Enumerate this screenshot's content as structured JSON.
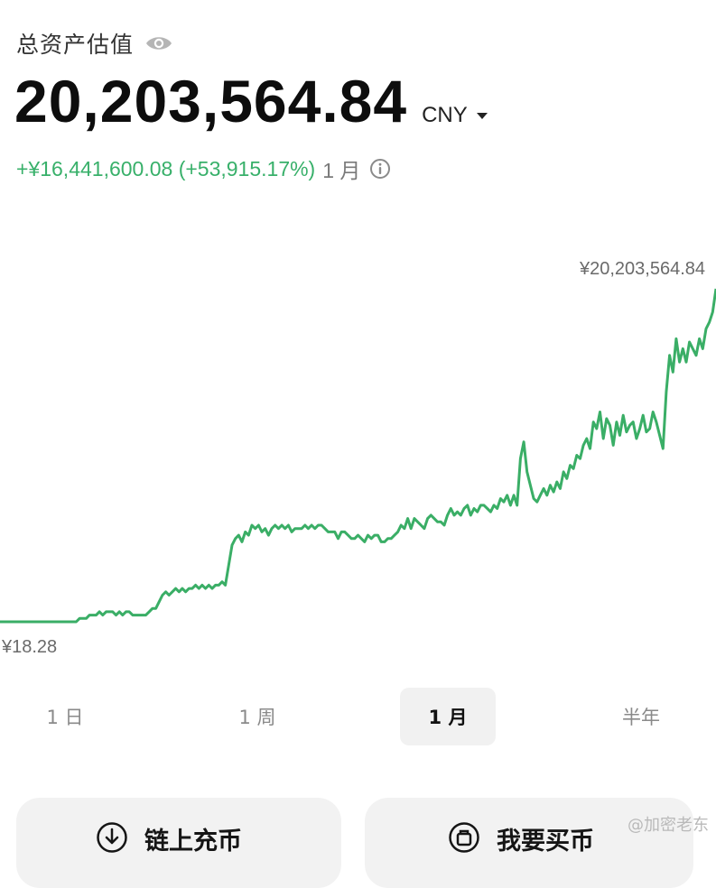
{
  "header": {
    "title": "总资产估值",
    "visibility_icon": "eye-icon",
    "total_value": "20,203,564.84",
    "currency": "CNY",
    "pnl_text": "+¥16,441,600.08 (+53,915.17%)",
    "period_label": "1 月",
    "info_icon": "info-icon"
  },
  "colors": {
    "line": "#3aae66",
    "pnl": "#38b06a",
    "text": "#111111",
    "muted": "#8a8a8a"
  },
  "chart_data": {
    "type": "line",
    "high_label": "¥20,203,564.84",
    "low_label": "¥18.28",
    "series": [
      {
        "values": [
          0.0,
          0.0,
          0.0,
          0.0,
          0.0,
          0.0,
          0.0,
          0.0,
          0.0,
          0.0,
          0.0,
          0.0,
          0.0,
          0.0,
          0.0,
          0.0,
          0.0,
          0.0,
          0.0,
          0.0,
          0.0,
          0.0,
          0.0,
          0.0,
          0.01,
          0.01,
          0.01,
          0.02,
          0.02,
          0.02,
          0.03,
          0.02,
          0.03,
          0.03,
          0.03,
          0.02,
          0.03,
          0.02,
          0.03,
          0.03,
          0.02,
          0.02,
          0.02,
          0.02,
          0.02,
          0.03,
          0.04,
          0.04,
          0.06,
          0.08,
          0.09,
          0.08,
          0.09,
          0.1,
          0.09,
          0.1,
          0.09,
          0.1,
          0.1,
          0.11,
          0.1,
          0.11,
          0.1,
          0.11,
          0.1,
          0.11,
          0.11,
          0.12,
          0.11,
          0.17,
          0.23,
          0.25,
          0.26,
          0.24,
          0.27,
          0.26,
          0.29,
          0.28,
          0.29,
          0.27,
          0.28,
          0.26,
          0.28,
          0.29,
          0.28,
          0.29,
          0.28,
          0.29,
          0.27,
          0.28,
          0.28,
          0.28,
          0.29,
          0.28,
          0.29,
          0.28,
          0.29,
          0.29,
          0.28,
          0.27,
          0.27,
          0.27,
          0.25,
          0.27,
          0.27,
          0.26,
          0.25,
          0.25,
          0.26,
          0.25,
          0.24,
          0.26,
          0.25,
          0.26,
          0.26,
          0.24,
          0.24,
          0.25,
          0.25,
          0.26,
          0.27,
          0.29,
          0.28,
          0.31,
          0.28,
          0.31,
          0.3,
          0.29,
          0.28,
          0.31,
          0.32,
          0.31,
          0.3,
          0.3,
          0.29,
          0.32,
          0.34,
          0.32,
          0.33,
          0.32,
          0.34,
          0.35,
          0.32,
          0.34,
          0.33,
          0.35,
          0.35,
          0.34,
          0.33,
          0.35,
          0.34,
          0.37,
          0.36,
          0.38,
          0.35,
          0.38,
          0.35,
          0.49,
          0.54,
          0.45,
          0.41,
          0.37,
          0.36,
          0.38,
          0.4,
          0.38,
          0.41,
          0.39,
          0.42,
          0.4,
          0.45,
          0.43,
          0.47,
          0.46,
          0.5,
          0.49,
          0.53,
          0.55,
          0.52,
          0.6,
          0.58,
          0.63,
          0.55,
          0.61,
          0.59,
          0.53,
          0.6,
          0.56,
          0.62,
          0.57,
          0.59,
          0.6,
          0.55,
          0.58,
          0.62,
          0.57,
          0.58,
          0.63,
          0.6,
          0.56,
          0.52,
          0.69,
          0.8,
          0.75,
          0.85,
          0.78,
          0.82,
          0.78,
          0.84,
          0.82,
          0.8,
          0.85,
          0.82,
          0.88,
          0.9,
          0.93,
          1.0
        ]
      }
    ]
  },
  "tabs": [
    {
      "label": "1 日",
      "active": false
    },
    {
      "label": "1 周",
      "active": false
    },
    {
      "label": "1 月",
      "active": true
    },
    {
      "label": "半年",
      "active": false
    }
  ],
  "actions": {
    "deposit": {
      "label": "链上充币",
      "icon": "download-icon"
    },
    "buy": {
      "label": "我要买币",
      "icon": "coin-icon"
    }
  },
  "watermark": "@加密老东"
}
